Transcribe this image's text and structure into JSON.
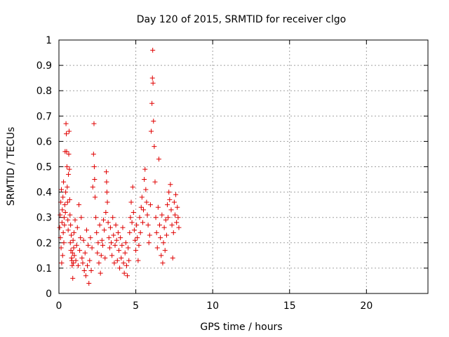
{
  "chart_data": {
    "type": "scatter",
    "title": "Day 120 of 2015, SRMTID for receiver clgo",
    "xlabel": "GPS time / hours",
    "ylabel": "SRMTID / TECUs",
    "xlim": [
      0,
      24
    ],
    "ylim": [
      0,
      1
    ],
    "x_ticks": [
      0,
      5,
      10,
      15,
      20
    ],
    "x_tick_labels": [
      "0",
      "5",
      "10",
      "15",
      "20"
    ],
    "y_ticks": [
      0,
      0.1,
      0.2,
      0.3,
      0.4,
      0.5,
      0.6,
      0.7,
      0.8,
      0.9,
      1
    ],
    "y_tick_labels": [
      "0",
      "0.1",
      "0.2",
      "0.3",
      "0.4",
      "0.5",
      "0.6",
      "0.7",
      "0.8",
      "0.9",
      "1"
    ],
    "grid": true,
    "marker": "+",
    "marker_color": "#e00000",
    "series": [
      {
        "name": "SRMTID",
        "points": [
          [
            0.05,
            0.26
          ],
          [
            0.08,
            0.31
          ],
          [
            0.1,
            0.22
          ],
          [
            0.12,
            0.36
          ],
          [
            0.14,
            0.18
          ],
          [
            0.16,
            0.41
          ],
          [
            0.18,
            0.12
          ],
          [
            0.2,
            0.28
          ],
          [
            0.22,
            0.33
          ],
          [
            0.24,
            0.15
          ],
          [
            0.26,
            0.38
          ],
          [
            0.28,
            0.24
          ],
          [
            0.3,
            0.44
          ],
          [
            0.32,
            0.2
          ],
          [
            0.34,
            0.3
          ],
          [
            0.36,
            0.27
          ],
          [
            0.38,
            0.35
          ],
          [
            0.4,
            0.56
          ],
          [
            0.42,
            0.32
          ],
          [
            0.44,
            0.4
          ],
          [
            0.46,
            0.67
          ],
          [
            0.48,
            0.63
          ],
          [
            0.5,
            0.56
          ],
          [
            0.52,
            0.5
          ],
          [
            0.54,
            0.42
          ],
          [
            0.56,
            0.36
          ],
          [
            0.58,
            0.29
          ],
          [
            0.6,
            0.25
          ],
          [
            0.62,
            0.47
          ],
          [
            0.64,
            0.55
          ],
          [
            0.66,
            0.64
          ],
          [
            0.68,
            0.49
          ],
          [
            0.7,
            0.37
          ],
          [
            0.72,
            0.31
          ],
          [
            0.74,
            0.2
          ],
          [
            0.76,
            0.27
          ],
          [
            0.78,
            0.17
          ],
          [
            0.8,
            0.23
          ],
          [
            0.82,
            0.14
          ],
          [
            0.84,
            0.13
          ],
          [
            0.86,
            0.11
          ],
          [
            0.88,
            0.16
          ],
          [
            0.9,
            0.06
          ],
          [
            0.92,
            0.21
          ],
          [
            0.94,
            0.12
          ],
          [
            0.96,
            0.18
          ],
          [
            0.98,
            0.24
          ],
          [
            1.0,
            0.15
          ],
          [
            1.05,
            0.29
          ],
          [
            1.1,
            0.13
          ],
          [
            1.15,
            0.19
          ],
          [
            1.2,
            0.26
          ],
          [
            1.25,
            0.11
          ],
          [
            1.3,
            0.35
          ],
          [
            1.35,
            0.17
          ],
          [
            1.4,
            0.22
          ],
          [
            1.45,
            0.3
          ],
          [
            1.5,
            0.14
          ],
          [
            1.55,
            0.12
          ],
          [
            1.6,
            0.21
          ],
          [
            1.65,
            0.09
          ],
          [
            1.7,
            0.16
          ],
          [
            1.75,
            0.07
          ],
          [
            1.8,
            0.25
          ],
          [
            1.85,
            0.11
          ],
          [
            1.9,
            0.19
          ],
          [
            1.95,
            0.04
          ],
          [
            2.0,
            0.13
          ],
          [
            2.05,
            0.22
          ],
          [
            2.1,
            0.09
          ],
          [
            2.15,
            0.18
          ],
          [
            2.2,
            0.42
          ],
          [
            2.25,
            0.55
          ],
          [
            2.28,
            0.67
          ],
          [
            2.3,
            0.5
          ],
          [
            2.32,
            0.45
          ],
          [
            2.35,
            0.38
          ],
          [
            2.4,
            0.3
          ],
          [
            2.45,
            0.24
          ],
          [
            2.5,
            0.16
          ],
          [
            2.55,
            0.2
          ],
          [
            2.6,
            0.12
          ],
          [
            2.65,
            0.27
          ],
          [
            2.7,
            0.08
          ],
          [
            2.75,
            0.15
          ],
          [
            2.8,
            0.21
          ],
          [
            2.85,
            0.19
          ],
          [
            2.9,
            0.29
          ],
          [
            2.95,
            0.25
          ],
          [
            3.0,
            0.14
          ],
          [
            3.05,
            0.32
          ],
          [
            3.08,
            0.48
          ],
          [
            3.1,
            0.44
          ],
          [
            3.12,
            0.4
          ],
          [
            3.15,
            0.36
          ],
          [
            3.2,
            0.28
          ],
          [
            3.25,
            0.22
          ],
          [
            3.3,
            0.18
          ],
          [
            3.35,
            0.26
          ],
          [
            3.4,
            0.2
          ],
          [
            3.45,
            0.15
          ],
          [
            3.5,
            0.3
          ],
          [
            3.55,
            0.23
          ],
          [
            3.6,
            0.12
          ],
          [
            3.65,
            0.19
          ],
          [
            3.7,
            0.27
          ],
          [
            3.75,
            0.21
          ],
          [
            3.8,
            0.13
          ],
          [
            3.85,
            0.24
          ],
          [
            3.9,
            0.17
          ],
          [
            3.95,
            0.1
          ],
          [
            4.0,
            0.22
          ],
          [
            4.05,
            0.14
          ],
          [
            4.1,
            0.19
          ],
          [
            4.15,
            0.26
          ],
          [
            4.2,
            0.12
          ],
          [
            4.25,
            0.08
          ],
          [
            4.3,
            0.16
          ],
          [
            4.35,
            0.2
          ],
          [
            4.4,
            0.11
          ],
          [
            4.45,
            0.07
          ],
          [
            4.5,
            0.18
          ],
          [
            4.55,
            0.13
          ],
          [
            4.6,
            0.24
          ],
          [
            4.65,
            0.3
          ],
          [
            4.7,
            0.36
          ],
          [
            4.75,
            0.28
          ],
          [
            4.8,
            0.42
          ],
          [
            4.85,
            0.32
          ],
          [
            4.9,
            0.25
          ],
          [
            4.95,
            0.21
          ],
          [
            5.0,
            0.17
          ],
          [
            5.05,
            0.27
          ],
          [
            5.1,
            0.22
          ],
          [
            5.15,
            0.13
          ],
          [
            5.2,
            0.19
          ],
          [
            5.25,
            0.3
          ],
          [
            5.3,
            0.24
          ],
          [
            5.35,
            0.34
          ],
          [
            5.4,
            0.38
          ],
          [
            5.45,
            0.28
          ],
          [
            5.5,
            0.33
          ],
          [
            5.55,
            0.45
          ],
          [
            5.6,
            0.49
          ],
          [
            5.65,
            0.41
          ],
          [
            5.7,
            0.36
          ],
          [
            5.75,
            0.31
          ],
          [
            5.8,
            0.27
          ],
          [
            5.85,
            0.2
          ],
          [
            5.9,
            0.23
          ],
          [
            5.95,
            0.35
          ],
          [
            6.0,
            0.64
          ],
          [
            6.05,
            0.75
          ],
          [
            6.08,
            0.85
          ],
          [
            6.1,
            0.96
          ],
          [
            6.12,
            0.83
          ],
          [
            6.15,
            0.68
          ],
          [
            6.2,
            0.58
          ],
          [
            6.25,
            0.44
          ],
          [
            6.3,
            0.3
          ],
          [
            6.35,
            0.24
          ],
          [
            6.4,
            0.18
          ],
          [
            6.45,
            0.34
          ],
          [
            6.5,
            0.53
          ],
          [
            6.55,
            0.27
          ],
          [
            6.6,
            0.22
          ],
          [
            6.65,
            0.15
          ],
          [
            6.7,
            0.31
          ],
          [
            6.75,
            0.12
          ],
          [
            6.8,
            0.2
          ],
          [
            6.85,
            0.26
          ],
          [
            6.9,
            0.17
          ],
          [
            6.95,
            0.29
          ],
          [
            7.0,
            0.23
          ],
          [
            7.05,
            0.35
          ],
          [
            7.1,
            0.3
          ],
          [
            7.15,
            0.4
          ],
          [
            7.2,
            0.37
          ],
          [
            7.25,
            0.43
          ],
          [
            7.3,
            0.33
          ],
          [
            7.35,
            0.27
          ],
          [
            7.4,
            0.14
          ],
          [
            7.45,
            0.24
          ],
          [
            7.5,
            0.36
          ],
          [
            7.55,
            0.31
          ],
          [
            7.6,
            0.39
          ],
          [
            7.65,
            0.28
          ],
          [
            7.7,
            0.34
          ],
          [
            7.75,
            0.3
          ],
          [
            7.8,
            0.26
          ]
        ]
      }
    ]
  }
}
